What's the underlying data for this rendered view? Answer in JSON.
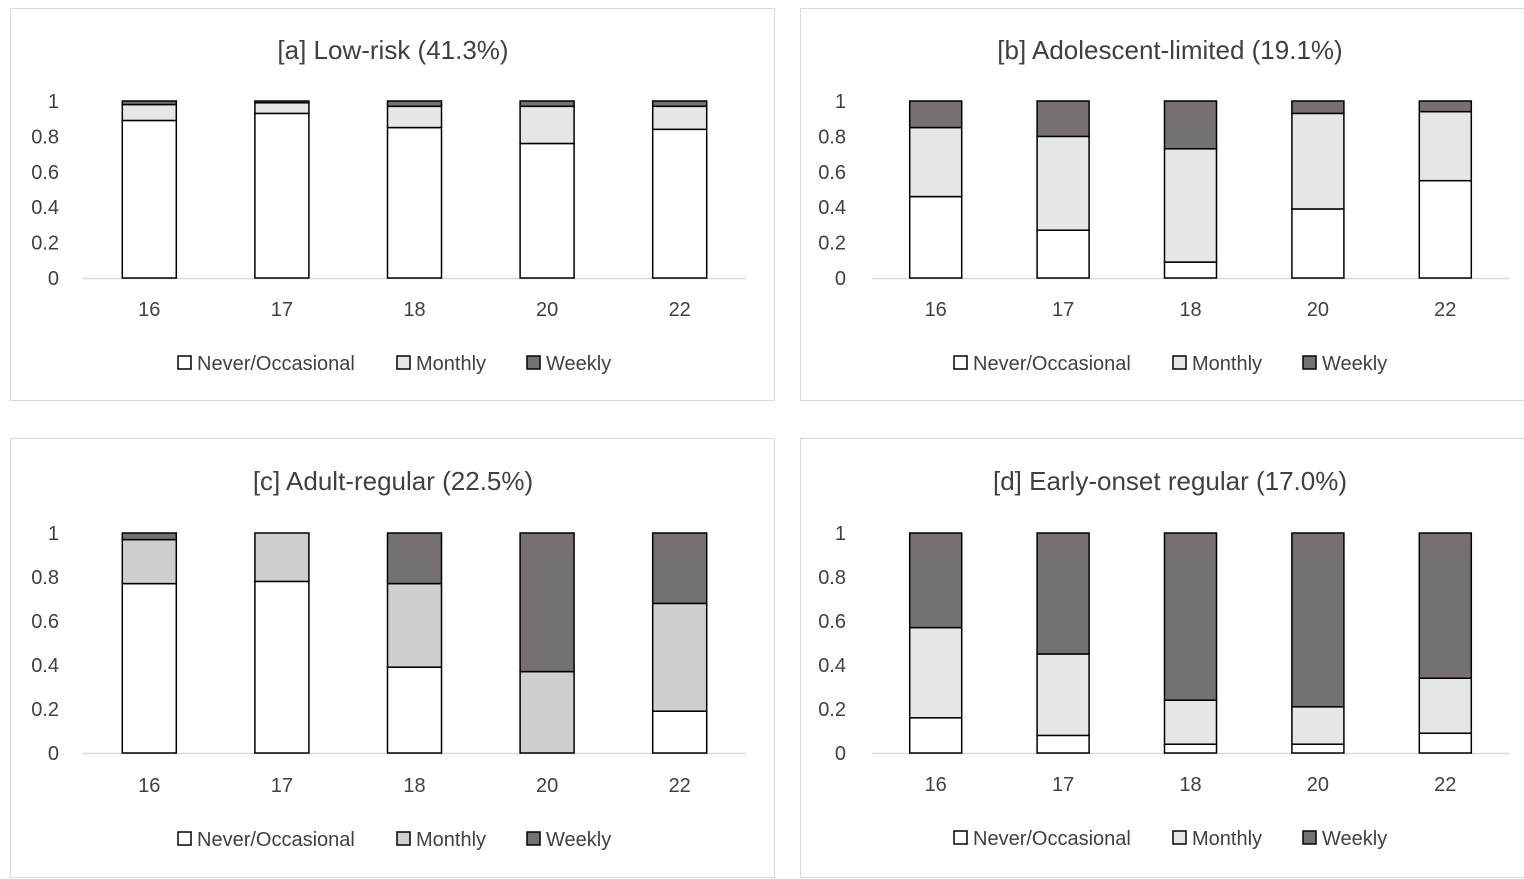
{
  "colors": {
    "never": "#ffffff",
    "monthly": "#e6e6e6",
    "monthly_alt": "#d0cece",
    "weekly": "#767171",
    "stroke": "#000000",
    "axis": "#d9d9d9",
    "text": "#404040"
  },
  "legend": [
    "Never/Occasional",
    "Monthly",
    "Weekly"
  ],
  "chart_data": [
    {
      "type": "bar",
      "stacked": true,
      "title": "[a] Low-risk (41.3%)",
      "categories": [
        "16",
        "17",
        "18",
        "20",
        "22"
      ],
      "yticks": [
        "0",
        "0.2",
        "0.4",
        "0.6",
        "0.8",
        "1"
      ],
      "ylim": [
        0,
        1
      ],
      "legend_position": "bottom",
      "grid": false,
      "series": [
        {
          "name": "Never/Occasional",
          "values": [
            0.89,
            0.93,
            0.85,
            0.76,
            0.84
          ]
        },
        {
          "name": "Monthly",
          "values": [
            0.09,
            0.06,
            0.12,
            0.21,
            0.13
          ]
        },
        {
          "name": "Weekly",
          "values": [
            0.02,
            0.01,
            0.03,
            0.03,
            0.03
          ]
        }
      ]
    },
    {
      "type": "bar",
      "stacked": true,
      "title": "[b] Adolescent-limited (19.1%)",
      "categories": [
        "16",
        "17",
        "18",
        "20",
        "22"
      ],
      "yticks": [
        "0",
        "0.2",
        "0.4",
        "0.6",
        "0.8",
        "1"
      ],
      "ylim": [
        0,
        1
      ],
      "legend_position": "bottom",
      "grid": false,
      "series": [
        {
          "name": "Never/Occasional",
          "values": [
            0.46,
            0.27,
            0.09,
            0.39,
            0.55
          ]
        },
        {
          "name": "Monthly",
          "values": [
            0.39,
            0.53,
            0.64,
            0.54,
            0.39
          ]
        },
        {
          "name": "Weekly",
          "values": [
            0.15,
            0.2,
            0.27,
            0.07,
            0.06
          ]
        }
      ]
    },
    {
      "type": "bar",
      "stacked": true,
      "title": "[c] Adult-regular (22.5%)",
      "categories": [
        "16",
        "17",
        "18",
        "20",
        "22"
      ],
      "yticks": [
        "0",
        "0.2",
        "0.4",
        "0.6",
        "0.8",
        "1"
      ],
      "ylim": [
        0,
        1
      ],
      "legend_position": "bottom",
      "grid": false,
      "series": [
        {
          "name": "Never/Occasional",
          "values": [
            0.77,
            0.78,
            0.39,
            0.0,
            0.19
          ]
        },
        {
          "name": "Monthly",
          "values": [
            0.2,
            0.22,
            0.38,
            0.37,
            0.49
          ]
        },
        {
          "name": "Weekly",
          "values": [
            0.03,
            0.0,
            0.23,
            0.63,
            0.32
          ]
        }
      ]
    },
    {
      "type": "bar",
      "stacked": true,
      "title": "[d] Early-onset regular (17.0%)",
      "categories": [
        "16",
        "17",
        "18",
        "20",
        "22"
      ],
      "yticks": [
        "0",
        "0.2",
        "0.4",
        "0.6",
        "0.8",
        "1"
      ],
      "ylim": [
        0,
        1
      ],
      "legend_position": "bottom",
      "grid": false,
      "series": [
        {
          "name": "Never/Occasional",
          "values": [
            0.16,
            0.08,
            0.04,
            0.04,
            0.09
          ]
        },
        {
          "name": "Monthly",
          "values": [
            0.41,
            0.37,
            0.2,
            0.17,
            0.25
          ]
        },
        {
          "name": "Weekly",
          "values": [
            0.43,
            0.55,
            0.76,
            0.79,
            0.66
          ]
        }
      ]
    }
  ]
}
